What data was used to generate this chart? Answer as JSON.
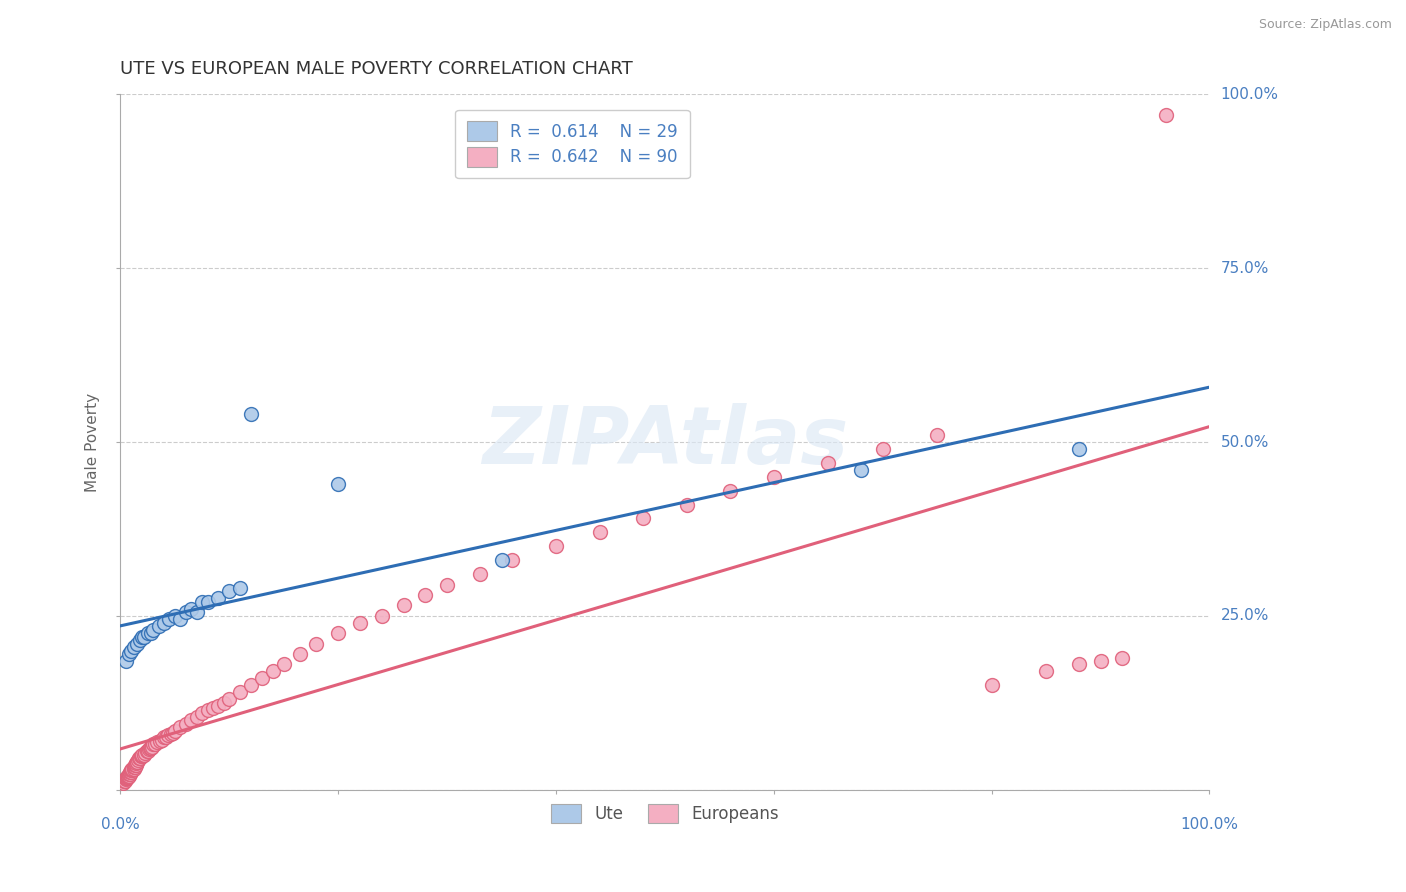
{
  "title": "UTE VS EUROPEAN MALE POVERTY CORRELATION CHART",
  "source": "Source: ZipAtlas.com",
  "ylabel": "Male Poverty",
  "ylim": [
    0.0,
    1.0
  ],
  "xlim": [
    0.0,
    1.0
  ],
  "legend_R_ute": "0.614",
  "legend_N_ute": "29",
  "legend_R_eu": "0.642",
  "legend_N_eu": "90",
  "ute_color": "#adc9e8",
  "eu_color": "#f4afc2",
  "ute_line_color": "#2e6db4",
  "eu_line_color": "#e0607a",
  "watermark": "ZIPAtlas",
  "ute_x": [
    0.005,
    0.008,
    0.01,
    0.012,
    0.015,
    0.018,
    0.02,
    0.022,
    0.025,
    0.028,
    0.03,
    0.035,
    0.04,
    0.045,
    0.05,
    0.055,
    0.06,
    0.065,
    0.07,
    0.075,
    0.08,
    0.09,
    0.1,
    0.11,
    0.12,
    0.2,
    0.35,
    0.68,
    0.88
  ],
  "ute_y": [
    0.185,
    0.195,
    0.2,
    0.205,
    0.21,
    0.215,
    0.22,
    0.22,
    0.225,
    0.225,
    0.23,
    0.235,
    0.24,
    0.245,
    0.25,
    0.245,
    0.255,
    0.26,
    0.255,
    0.27,
    0.27,
    0.275,
    0.285,
    0.29,
    0.54,
    0.44,
    0.33,
    0.46,
    0.49
  ],
  "eu_x": [
    0.002,
    0.003,
    0.004,
    0.005,
    0.005,
    0.006,
    0.006,
    0.007,
    0.007,
    0.008,
    0.008,
    0.009,
    0.009,
    0.01,
    0.01,
    0.011,
    0.011,
    0.012,
    0.012,
    0.013,
    0.013,
    0.014,
    0.014,
    0.015,
    0.015,
    0.016,
    0.017,
    0.018,
    0.019,
    0.02,
    0.02,
    0.022,
    0.023,
    0.024,
    0.025,
    0.026,
    0.027,
    0.028,
    0.029,
    0.03,
    0.032,
    0.034,
    0.036,
    0.038,
    0.04,
    0.042,
    0.044,
    0.046,
    0.048,
    0.05,
    0.055,
    0.06,
    0.065,
    0.07,
    0.075,
    0.08,
    0.085,
    0.09,
    0.095,
    0.1,
    0.11,
    0.12,
    0.13,
    0.14,
    0.15,
    0.165,
    0.18,
    0.2,
    0.22,
    0.24,
    0.26,
    0.28,
    0.3,
    0.33,
    0.36,
    0.4,
    0.44,
    0.48,
    0.52,
    0.56,
    0.6,
    0.65,
    0.7,
    0.75,
    0.8,
    0.85,
    0.88,
    0.9,
    0.92,
    0.96
  ],
  "eu_y": [
    0.01,
    0.012,
    0.013,
    0.015,
    0.016,
    0.017,
    0.018,
    0.018,
    0.02,
    0.02,
    0.022,
    0.022,
    0.025,
    0.025,
    0.028,
    0.028,
    0.03,
    0.03,
    0.032,
    0.032,
    0.035,
    0.036,
    0.038,
    0.04,
    0.04,
    0.042,
    0.045,
    0.045,
    0.048,
    0.048,
    0.05,
    0.05,
    0.052,
    0.055,
    0.055,
    0.058,
    0.06,
    0.06,
    0.062,
    0.065,
    0.065,
    0.068,
    0.07,
    0.072,
    0.075,
    0.075,
    0.078,
    0.08,
    0.082,
    0.085,
    0.09,
    0.095,
    0.1,
    0.105,
    0.11,
    0.115,
    0.118,
    0.12,
    0.125,
    0.13,
    0.14,
    0.15,
    0.16,
    0.17,
    0.18,
    0.195,
    0.21,
    0.225,
    0.24,
    0.25,
    0.265,
    0.28,
    0.295,
    0.31,
    0.33,
    0.35,
    0.37,
    0.39,
    0.41,
    0.43,
    0.45,
    0.47,
    0.49,
    0.51,
    0.15,
    0.17,
    0.18,
    0.185,
    0.19,
    0.97
  ]
}
